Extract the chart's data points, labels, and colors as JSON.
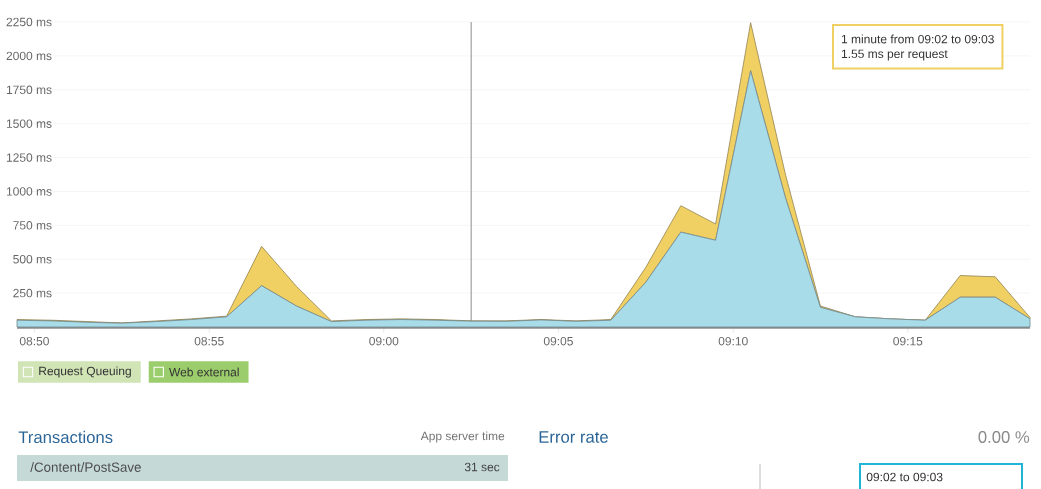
{
  "chart_data": {
    "type": "area",
    "stacked": true,
    "grid": "y",
    "legend": "bottom",
    "x": [
      8.825,
      8.8417,
      8.8583,
      8.875,
      8.8917,
      8.9083,
      8.925,
      8.9417,
      8.9583,
      8.975,
      8.9917,
      9.0083,
      9.025,
      9.0417,
      9.0583,
      9.075,
      9.0917,
      9.1083,
      9.125,
      9.1417,
      9.1583,
      9.175,
      9.1917,
      9.2083,
      9.225,
      9.2417,
      9.2583,
      9.275,
      9.2917,
      9.3083
    ],
    "xlim": [
      8.825,
      9.3083
    ],
    "xticks": [
      {
        "value": 8.8333,
        "label": "08:50"
      },
      {
        "value": 8.9167,
        "label": "08:55"
      },
      {
        "value": 9.0,
        "label": "09:00"
      },
      {
        "value": 9.0833,
        "label": "09:05"
      },
      {
        "value": 9.1667,
        "label": "09:10"
      },
      {
        "value": 9.25,
        "label": "09:15"
      }
    ],
    "ylim": [
      0,
      2250
    ],
    "yticks": [
      {
        "value": 250,
        "label": "250 ms"
      },
      {
        "value": 500,
        "label": "500 ms"
      },
      {
        "value": 750,
        "label": "750 ms"
      },
      {
        "value": 1000,
        "label": "1000 ms"
      },
      {
        "value": 1250,
        "label": "1250 ms"
      },
      {
        "value": 1500,
        "label": "1500 ms"
      },
      {
        "value": 1750,
        "label": "1750 ms"
      },
      {
        "value": 2000,
        "label": "2000 ms"
      },
      {
        "value": 2250,
        "label": "2250 ms"
      }
    ],
    "series": [
      {
        "name": "Request Queuing",
        "color": "#d0e4b5",
        "values": [
          null,
          null,
          null,
          null,
          null,
          null,
          null,
          null,
          null,
          null,
          null,
          null,
          null,
          null,
          null,
          null,
          null,
          null,
          null,
          null,
          null,
          null,
          null,
          null,
          null,
          null,
          null,
          null,
          null,
          null
        ]
      },
      {
        "color": "#a8dce8",
        "values": [
          50,
          45,
          35,
          28,
          40,
          55,
          75,
          305,
          155,
          40,
          50,
          55,
          50,
          43,
          42,
          52,
          42,
          50,
          330,
          700,
          640,
          1890,
          950,
          145,
          75,
          60,
          50,
          220,
          220,
          60
        ]
      },
      {
        "color": "#f0cf63",
        "values": [
          5,
          5,
          5,
          2,
          5,
          5,
          5,
          290,
          145,
          5,
          5,
          5,
          5,
          2,
          3,
          3,
          3,
          5,
          110,
          195,
          120,
          355,
          170,
          10,
          0,
          0,
          0,
          160,
          150,
          10
        ]
      },
      {
        "name": "Web external",
        "color": "#9ccd6c",
        "values": [
          null,
          null,
          null,
          null,
          null,
          null,
          null,
          null,
          null,
          null,
          null,
          null,
          null,
          null,
          null,
          null,
          null,
          null,
          null,
          null,
          null,
          null,
          null,
          null,
          null,
          null,
          null,
          null,
          null,
          null
        ]
      }
    ],
    "ref_lines": [
      {
        "axis": "x",
        "value": 9.0417,
        "color": "#aaaaaa"
      }
    ],
    "annotations": [
      "1 minute from 09:02 to 09:03",
      "1.55 ms per request",
      "Transactions",
      "App server time",
      "/Content/PostSave",
      "31 sec",
      "Error rate",
      "0.00 %",
      "09:02 to 09:03"
    ]
  }
}
